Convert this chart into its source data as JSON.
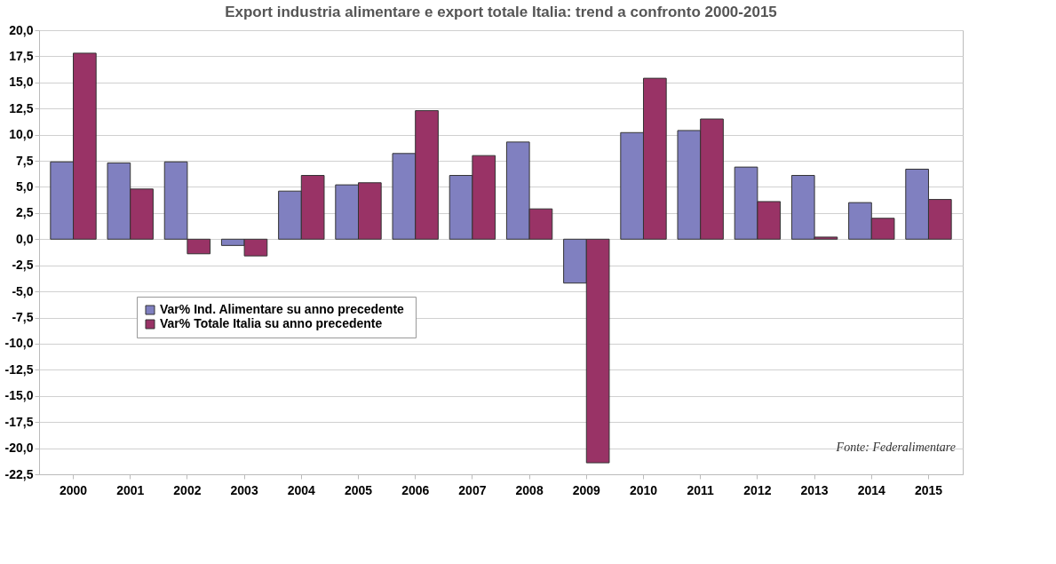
{
  "chart_data": {
    "type": "bar",
    "title": "Export industria alimentare e export totale Italia: trend a confronto 2000-2015",
    "categories": [
      "2000",
      "2001",
      "2002",
      "2003",
      "2004",
      "2005",
      "2006",
      "2007",
      "2008",
      "2009",
      "2010",
      "2011",
      "2012",
      "2013",
      "2014",
      "2015"
    ],
    "series": [
      {
        "name": "Var% Ind. Alimentare  su anno precedente",
        "color": "#8080c0",
        "values": [
          7.4,
          7.3,
          7.4,
          -0.6,
          4.6,
          5.2,
          8.2,
          6.1,
          9.3,
          -4.2,
          10.2,
          10.4,
          6.9,
          6.1,
          3.5,
          6.7
        ]
      },
      {
        "name": "Var% Totale Italia su anno precedente",
        "color": "#993366",
        "values": [
          17.8,
          4.8,
          -1.4,
          -1.6,
          6.1,
          5.4,
          12.3,
          8.0,
          2.9,
          -21.4,
          15.4,
          11.5,
          3.6,
          0.2,
          2.0,
          3.8
        ]
      }
    ],
    "ylim": [
      -22.5,
      20
    ],
    "yticks": [
      {
        "value": 20,
        "label": "20,0"
      },
      {
        "value": 17.5,
        "label": "17,5"
      },
      {
        "value": 15,
        "label": "15,0"
      },
      {
        "value": 12.5,
        "label": "12,5"
      },
      {
        "value": 10,
        "label": "10,0"
      },
      {
        "value": 7.5,
        "label": "7,5"
      },
      {
        "value": 5,
        "label": "5,0"
      },
      {
        "value": 2.5,
        "label": "2,5"
      },
      {
        "value": 0,
        "label": "0,0"
      },
      {
        "value": -2.5,
        "label": "-2,5"
      },
      {
        "value": -5,
        "label": "-5,0"
      },
      {
        "value": -7.5,
        "label": "-7,5"
      },
      {
        "value": -10,
        "label": "-10,0"
      },
      {
        "value": -12.5,
        "label": "-12,5"
      },
      {
        "value": -15,
        "label": "-15,0"
      },
      {
        "value": -17.5,
        "label": "-17,5"
      },
      {
        "value": -20,
        "label": "-20,0"
      },
      {
        "value": -22.5,
        "label": "-22,5"
      }
    ],
    "grid": "y",
    "legend": "left",
    "annotations": [
      "Fonte: Federalimentare"
    ]
  }
}
